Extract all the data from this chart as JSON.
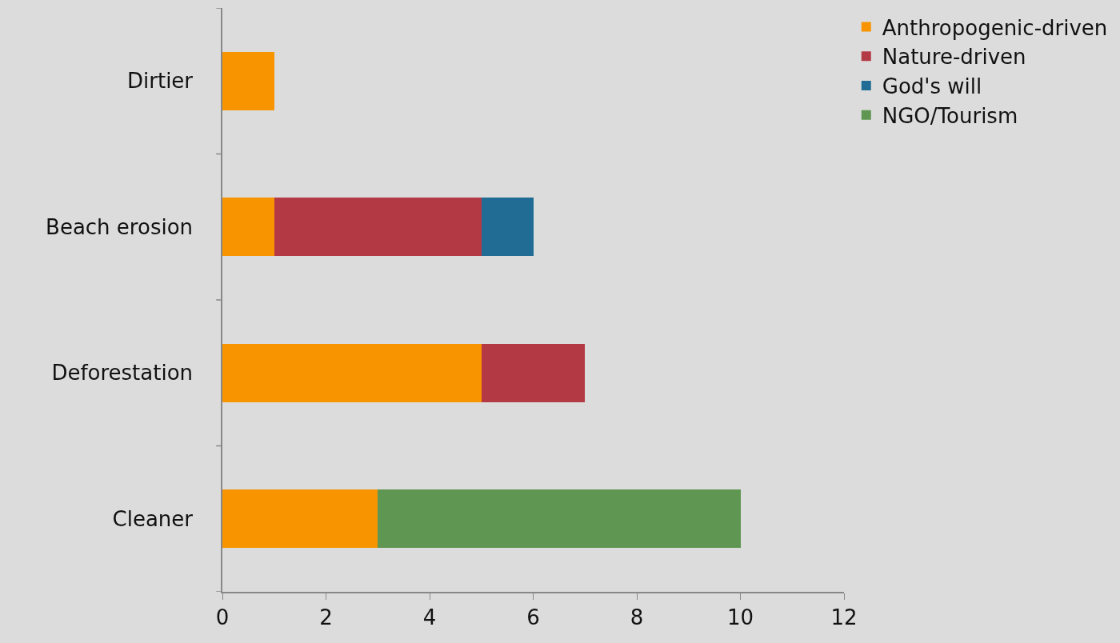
{
  "chart_data": {
    "type": "bar",
    "orientation": "horizontal",
    "stacked": true,
    "categories": [
      "Dirtier",
      "Beach erosion",
      "Deforestation",
      "Cleaner"
    ],
    "series": [
      {
        "name": "Anthropogenic-driven",
        "color": "#f79400",
        "values": [
          1,
          1,
          5,
          3
        ]
      },
      {
        "name": "Nature-driven",
        "color": "#b33a45",
        "values": [
          null,
          4,
          2,
          null
        ]
      },
      {
        "name": "God's will",
        "color": "#216c94",
        "values": [
          null,
          1,
          null,
          null
        ]
      },
      {
        "name": "NGO/Tourism",
        "color": "#5f9752",
        "values": [
          null,
          null,
          null,
          7
        ]
      }
    ],
    "xlim": [
      0,
      12
    ],
    "xticks": [
      0,
      2,
      4,
      6,
      8,
      10,
      12
    ],
    "grid": false,
    "legend": "top right"
  }
}
